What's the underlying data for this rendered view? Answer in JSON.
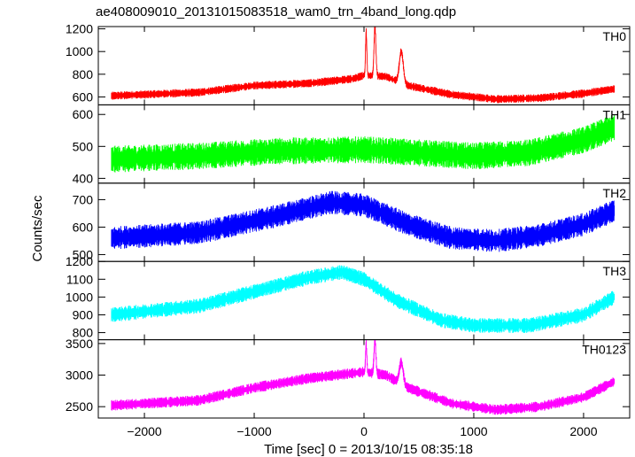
{
  "title": "ae408009010_20131015083518_wam0_trn_4band_long.qdp",
  "ylabel": "Counts/sec",
  "xlabel": "Time [sec] 0 = 2013/10/15 08:35:18",
  "chart_data": {
    "type": "line",
    "title": "ae408009010_20131015083518_wam0_trn_4band_long.qdp",
    "xlabel": "Time [sec] 0 = 2013/10/15 08:35:18",
    "ylabel": "Counts/sec",
    "xlim": [
      -2420,
      2420
    ],
    "xticks": [
      -2000,
      -1000,
      0,
      1000,
      2000
    ],
    "x_range": [
      -2300,
      2280
    ],
    "panels": [
      {
        "name": "TH0",
        "color": "#ff0000",
        "ylim": [
          530,
          1220
        ],
        "yticks": [
          600,
          800,
          1000,
          1200
        ],
        "baseline_x": [
          -2300,
          -1500,
          -1000,
          -500,
          -100,
          0,
          200,
          400,
          800,
          1200,
          1600,
          2000,
          2280
        ],
        "baseline_y": [
          610,
          640,
          700,
          720,
          760,
          790,
          780,
          700,
          620,
          580,
          590,
          630,
          670
        ],
        "noise": 30,
        "peaks": [
          {
            "x": 20,
            "y": 1180,
            "width": 8
          },
          {
            "x": 100,
            "y": 1220,
            "width": 12
          },
          {
            "x": 340,
            "y": 1000,
            "width": 25
          }
        ]
      },
      {
        "name": "TH1",
        "color": "#00ff00",
        "ylim": [
          385,
          630
        ],
        "yticks": [
          400,
          500,
          600
        ],
        "baseline_x": [
          -2300,
          -1500,
          -800,
          0,
          500,
          1000,
          1500,
          2000,
          2280
        ],
        "baseline_y": [
          460,
          470,
          485,
          490,
          480,
          470,
          480,
          520,
          560
        ],
        "noise": 35,
        "peaks": []
      },
      {
        "name": "TH2",
        "color": "#0000ff",
        "ylim": [
          475,
          760
        ],
        "yticks": [
          500,
          600,
          700
        ],
        "baseline_x": [
          -2300,
          -1500,
          -800,
          -300,
          0,
          400,
          800,
          1200,
          1600,
          2000,
          2280
        ],
        "baseline_y": [
          560,
          580,
          640,
          690,
          680,
          610,
          560,
          550,
          570,
          610,
          660
        ],
        "noise": 35,
        "peaks": []
      },
      {
        "name": "TH3",
        "color": "#00ffff",
        "ylim": [
          760,
          1200
        ],
        "yticks": [
          800,
          900,
          1000,
          1100,
          1200
        ],
        "baseline_x": [
          -2300,
          -1500,
          -1000,
          -500,
          -200,
          0,
          300,
          700,
          1000,
          1500,
          2000,
          2280
        ],
        "baseline_y": [
          900,
          950,
          1030,
          1110,
          1140,
          1100,
          980,
          870,
          840,
          840,
          900,
          1000
        ],
        "noise": 35,
        "peaks": []
      },
      {
        "name": "TH0123",
        "color": "#ff00ff",
        "ylim": [
          2320,
          3560
        ],
        "yticks": [
          2500,
          3000,
          3500
        ],
        "baseline_x": [
          -2300,
          -1500,
          -1000,
          -500,
          0,
          200,
          400,
          800,
          1200,
          1600,
          2000,
          2280
        ],
        "baseline_y": [
          2520,
          2600,
          2800,
          2950,
          3050,
          3000,
          2800,
          2550,
          2450,
          2500,
          2650,
          2900
        ],
        "noise": 70,
        "peaks": [
          {
            "x": 20,
            "y": 3500,
            "width": 8
          },
          {
            "x": 100,
            "y": 3550,
            "width": 12
          },
          {
            "x": 340,
            "y": 3200,
            "width": 25
          }
        ]
      }
    ]
  }
}
